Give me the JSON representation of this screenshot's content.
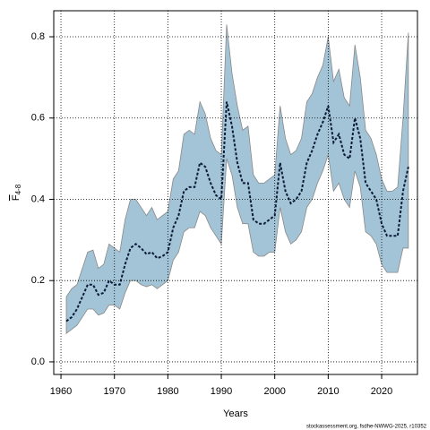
{
  "chart_data": {
    "type": "band_line",
    "x_label": "Years",
    "y_label_symbol": "F",
    "y_label_subscript": "4-8",
    "footer": "stockassessment.org, fsdhe-NWWG-2025, r10352",
    "x": [
      1961,
      1962,
      1963,
      1964,
      1965,
      1966,
      1967,
      1968,
      1969,
      1970,
      1971,
      1972,
      1973,
      1974,
      1975,
      1976,
      1977,
      1978,
      1979,
      1980,
      1981,
      1982,
      1983,
      1984,
      1985,
      1986,
      1987,
      1988,
      1989,
      1990,
      1991,
      1992,
      1993,
      1994,
      1995,
      1996,
      1997,
      1998,
      1999,
      2000,
      2001,
      2002,
      2003,
      2004,
      2005,
      2006,
      2007,
      2008,
      2009,
      2010,
      2011,
      2012,
      2013,
      2014,
      2015,
      2016,
      2017,
      2018,
      2019,
      2020,
      2021,
      2022,
      2023,
      2024,
      2025
    ],
    "values": [
      0.1,
      0.11,
      0.13,
      0.16,
      0.19,
      0.19,
      0.165,
      0.17,
      0.2,
      0.19,
      0.19,
      0.24,
      0.28,
      0.29,
      0.28,
      0.265,
      0.27,
      0.255,
      0.26,
      0.27,
      0.33,
      0.36,
      0.42,
      0.43,
      0.43,
      0.49,
      0.48,
      0.44,
      0.41,
      0.4,
      0.64,
      0.58,
      0.49,
      0.44,
      0.44,
      0.35,
      0.34,
      0.34,
      0.35,
      0.36,
      0.49,
      0.42,
      0.39,
      0.4,
      0.42,
      0.49,
      0.52,
      0.56,
      0.59,
      0.63,
      0.54,
      0.56,
      0.51,
      0.5,
      0.6,
      0.55,
      0.44,
      0.42,
      0.4,
      0.34,
      0.31,
      0.31,
      0.31,
      0.42,
      0.48
    ],
    "upper": [
      0.16,
      0.18,
      0.19,
      0.23,
      0.27,
      0.275,
      0.23,
      0.24,
      0.29,
      0.28,
      0.27,
      0.35,
      0.4,
      0.4,
      0.38,
      0.36,
      0.38,
      0.35,
      0.36,
      0.37,
      0.45,
      0.47,
      0.56,
      0.57,
      0.56,
      0.64,
      0.61,
      0.55,
      0.52,
      0.51,
      0.83,
      0.71,
      0.63,
      0.57,
      0.58,
      0.46,
      0.44,
      0.44,
      0.45,
      0.46,
      0.63,
      0.55,
      0.51,
      0.52,
      0.55,
      0.64,
      0.66,
      0.7,
      0.73,
      0.8,
      0.69,
      0.72,
      0.65,
      0.63,
      0.78,
      0.7,
      0.57,
      0.55,
      0.51,
      0.45,
      0.42,
      0.42,
      0.43,
      0.6,
      0.81
    ],
    "lower": [
      0.07,
      0.08,
      0.09,
      0.11,
      0.13,
      0.13,
      0.115,
      0.12,
      0.14,
      0.14,
      0.13,
      0.17,
      0.2,
      0.2,
      0.19,
      0.185,
      0.19,
      0.18,
      0.19,
      0.2,
      0.25,
      0.27,
      0.32,
      0.33,
      0.33,
      0.37,
      0.36,
      0.33,
      0.31,
      0.29,
      0.5,
      0.46,
      0.38,
      0.34,
      0.34,
      0.27,
      0.26,
      0.26,
      0.27,
      0.27,
      0.38,
      0.32,
      0.29,
      0.3,
      0.32,
      0.38,
      0.4,
      0.44,
      0.47,
      0.51,
      0.42,
      0.44,
      0.4,
      0.38,
      0.47,
      0.43,
      0.32,
      0.31,
      0.29,
      0.24,
      0.22,
      0.22,
      0.22,
      0.28,
      0.28
    ],
    "line_color": "#0b1a3a",
    "band_color": "#a3c4d6",
    "xlim": [
      1958.65,
      2026.7
    ],
    "ylim": [
      -0.031,
      0.864
    ],
    "xticks": [
      1960,
      1970,
      1980,
      1990,
      2000,
      2010,
      2020
    ],
    "yticks": [
      {
        "value": 0,
        "label": "0.0"
      },
      0.2,
      0.4,
      0.6,
      0.8
    ],
    "grid": true
  }
}
